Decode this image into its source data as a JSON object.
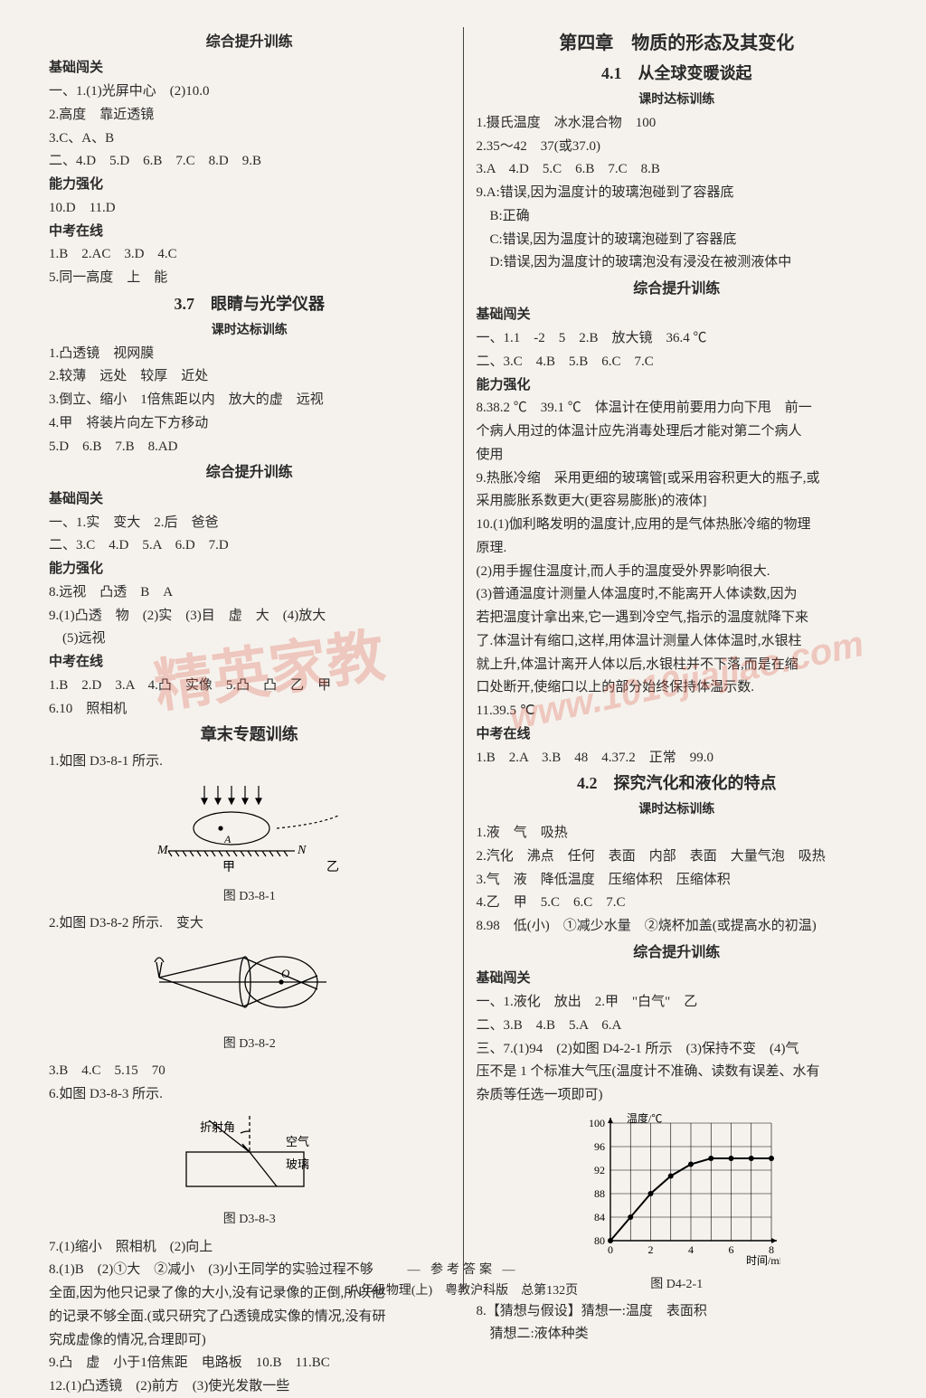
{
  "watermark1": "精英家教",
  "watermark2": "www.1010jiajiao.com",
  "left": {
    "title1": "综合提升训练",
    "h_basic": "基础闯关",
    "l1": "一、1.(1)光屏中心　(2)10.0",
    "l2": "2.高度　靠近透镜",
    "l3": "3.C、A、B",
    "l4": "二、4.D　5.D　6.B　7.C　8.D　9.B",
    "h_ability": "能力强化",
    "l5": "10.D　11.D",
    "h_exam": "中考在线",
    "l6": "1.B　2.AC　3.D　4.C",
    "l7": "5.同一高度　上　能",
    "sec37": "3.7　眼睛与光学仪器",
    "sub37": "课时达标训练",
    "l8": "1.凸透镜　视网膜",
    "l9": "2.较薄　远处　较厚　近处",
    "l10": "3.倒立、缩小　1倍焦距以内　放大的虚　远视",
    "l11": "4.甲　将装片向左下方移动",
    "l12": "5.D　6.B　7.B　8.AD",
    "title2": "综合提升训练",
    "h_basic2": "基础闯关",
    "l13": "一、1.实　变大　2.后　爸爸",
    "l14": "二、3.C　4.D　5.A　6.D　7.D",
    "h_ability2": "能力强化",
    "l15": "8.远视　凸透　B　A",
    "l16": "9.(1)凸透　物　(2)实　(3)目　虚　大　(4)放大",
    "l17": "　(5)远视",
    "h_exam2": "中考在线",
    "l18": "1.B　2.D　3.A　4.凸　实像　5.凸　凸　乙　甲",
    "l19": "6.10　照相机",
    "sec_ch": "章末专题训练",
    "l20": "1.如图 D3-8-1 所示.",
    "fig1_labels": {
      "M": "M",
      "N": "N",
      "A": "A",
      "jia": "甲",
      "yi": "乙"
    },
    "fig1_cap": "图 D3-8-1",
    "l21": "2.如图 D3-8-2 所示.　变大",
    "fig2_label": "O",
    "fig2_cap": "图 D3-8-2",
    "l22": "3.B　4.C　5.15　70",
    "l23": "6.如图 D3-8-3 所示.",
    "fig3_labels": {
      "ref": "折射角",
      "air": "空气",
      "glass": "玻璃"
    },
    "fig3_cap": "图 D3-8-3",
    "l24": "7.(1)缩小　照相机　(2)向上",
    "l25": "8.(1)B　(2)①大　②减小　(3)小王同学的实验过程不够",
    "l26": "全面,因为他只记录了像的大小,没有记录像的正倒,所以他",
    "l27": "的记录不够全面.(或只研究了凸透镜成实像的情况,没有研",
    "l28": "究成虚像的情况,合理即可)",
    "l29": "9.凸　虚　小于1倍焦距　电路板　10.B　11.BC",
    "l30": "12.(1)凸透镜　(2)前方　(3)使光发散一些"
  },
  "right": {
    "ch4": "第四章　物质的形态及其变化",
    "sec41": "4.1　从全球变暖谈起",
    "sub41": "课时达标训练",
    "r1": "1.摄氏温度　冰水混合物　100",
    "r2": "2.35～42　37(或37.0)",
    "r3": "3.A　4.D　5.C　6.B　7.C　8.B",
    "r4": "9.A:错误,因为温度计的玻璃泡碰到了容器底",
    "r5": "　B:正确",
    "r6": "　C:错误,因为温度计的玻璃泡碰到了容器底",
    "r7": "　D:错误,因为温度计的玻璃泡没有浸没在被测液体中",
    "title3": "综合提升训练",
    "h_basic3": "基础闯关",
    "r8": "一、1.1　-2　5　2.B　放大镜　36.4 ℃",
    "r9": "二、3.C　4.B　5.B　6.C　7.C",
    "h_ability3": "能力强化",
    "r10": "8.38.2 ℃　39.1 ℃　体温计在使用前要用力向下甩　前一",
    "r11": "个病人用过的体温计应先消毒处理后才能对第二个病人",
    "r12": "使用",
    "r13": "9.热胀冷缩　采用更细的玻璃管[或采用容积更大的瓶子,或",
    "r14": "采用膨胀系数更大(更容易膨胀)的液体]",
    "r15": "10.(1)伽利略发明的温度计,应用的是气体热胀冷缩的物理",
    "r16": "原理.",
    "r17": "(2)用手握住温度计,而人手的温度受外界影响很大.",
    "r18": "(3)普通温度计测量人体温度时,不能离开人体读数,因为",
    "r19": "若把温度计拿出来,它一遇到冷空气,指示的温度就降下来",
    "r20": "了.体温计有缩口,这样,用体温计测量人体体温时,水银柱",
    "r21": "就上升,体温计离开人体以后,水银柱并不下落,而是在缩",
    "r22": "口处断开,使缩口以上的部分始终保持体温示数.",
    "r23": "11.39.5 ℃",
    "h_exam3": "中考在线",
    "r24": "1.B　2.A　3.B　48　4.37.2　正常　99.0",
    "sec42": "4.2　探究汽化和液化的特点",
    "sub42": "课时达标训练",
    "r25": "1.液　气　吸热",
    "r26": "2.汽化　沸点　任何　表面　内部　表面　大量气泡　吸热",
    "r27": "3.气　液　降低温度　压缩体积　压缩体积",
    "r28": "4.乙　甲　5.C　6.C　7.C",
    "r29": "8.98　低(小)　①减少水量　②烧杯加盖(或提高水的初温)",
    "title4": "综合提升训练",
    "h_basic4": "基础闯关",
    "r30": "一、1.液化　放出　2.甲　\"白气\"　乙",
    "r31": "二、3.B　4.B　5.A　6.A",
    "r32": "三、7.(1)94　(2)如图 D4-2-1 所示　(3)保持不变　(4)气",
    "r33": "压不是 1 个标准大气压(温度计不准确、读数有误差、水有",
    "r34": "杂质等任选一项即可)",
    "chart": {
      "type": "line",
      "xlabel": "时间/min",
      "ylabel": "温度/℃",
      "xlim": [
        0,
        8
      ],
      "ylim": [
        80,
        100
      ],
      "xtick_step": 2,
      "ytick_step": 4,
      "xticks": [
        0,
        2,
        4,
        6,
        8
      ],
      "yticks": [
        80,
        84,
        88,
        92,
        96,
        100
      ],
      "points_x": [
        0,
        1,
        2,
        3,
        4,
        5,
        6,
        7,
        8
      ],
      "points_y": [
        80,
        84,
        88,
        91,
        93,
        94,
        94,
        94,
        94
      ],
      "line_color": "#000000",
      "grid_color": "#000000",
      "background_color": "#f5f2ed",
      "line_width": 2,
      "marker": "circle",
      "marker_size": 4
    },
    "fig4_cap": "图 D4-2-1",
    "r35": "8.【猜想与假设】猜想一:温度　表面积",
    "r36": "　猜想二:液体种类"
  },
  "footer": {
    "l1": "参考答案",
    "l2": "八年级物理(上)　粤教沪科版　总第132页"
  }
}
